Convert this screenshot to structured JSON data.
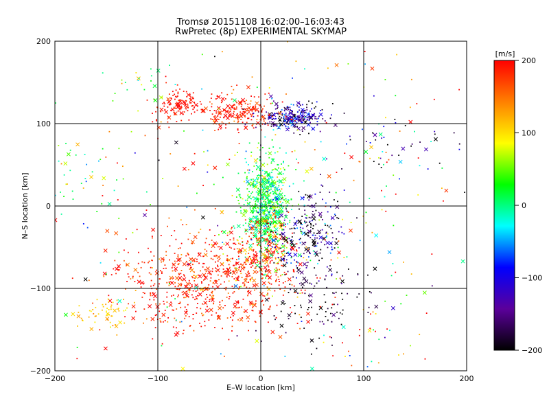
{
  "chart_data": {
    "type": "scatter",
    "title": "Tromsø 20151108 16:02:00–16:03:43",
    "subtitle": "RwPretec (8p) EXPERIMENTAL SKYMAP",
    "xlabel": "E–W location [km]",
    "ylabel": "N–S location [km]",
    "xlim": [
      -200,
      200
    ],
    "ylim": [
      -200,
      200
    ],
    "xticks": [
      -200,
      -100,
      0,
      100,
      200
    ],
    "yticks": [
      -200,
      -100,
      0,
      100,
      200
    ],
    "xtick_labels": [
      "−200",
      "−100",
      "0",
      "100",
      "200"
    ],
    "ytick_labels": [
      "−200",
      "−100",
      "0",
      "100",
      "200"
    ],
    "grid": true,
    "markers": [
      "dot",
      "x"
    ],
    "colorbar": {
      "label": "[m/s]",
      "range": [
        -200,
        200
      ],
      "ticks": [
        -200,
        -100,
        0,
        100,
        200
      ],
      "tick_labels": [
        "−200",
        "−100",
        "0",
        "100",
        "200"
      ],
      "colormap": [
        "#000000",
        "#5b009b",
        "#0000ff",
        "#00ffff",
        "#00ff00",
        "#ffff00",
        "#ff8000",
        "#ff0000"
      ]
    },
    "clusters": [
      {
        "cx": 5,
        "cy": 0,
        "sx": 12,
        "sy": 30,
        "n": 700,
        "v": 15,
        "vs": 35
      },
      {
        "cx": 30,
        "cy": 108,
        "sx": 15,
        "sy": 8,
        "n": 260,
        "v": -140,
        "vs": 50
      },
      {
        "cx": -20,
        "cy": 115,
        "sx": 18,
        "sy": 12,
        "n": 200,
        "v": 190,
        "vs": 25
      },
      {
        "cx": -80,
        "cy": 122,
        "sx": 12,
        "sy": 10,
        "n": 120,
        "v": 195,
        "vs": 15
      },
      {
        "cx": -60,
        "cy": -95,
        "sx": 40,
        "sy": 28,
        "n": 550,
        "v": 190,
        "vs": 30
      },
      {
        "cx": 0,
        "cy": -65,
        "sx": 18,
        "sy": 25,
        "n": 300,
        "v": 180,
        "vs": 45
      },
      {
        "cx": 45,
        "cy": -35,
        "sx": 18,
        "sy": 25,
        "n": 250,
        "v": -160,
        "vs": 60
      },
      {
        "cx": 60,
        "cy": -120,
        "sx": 25,
        "sy": 25,
        "n": 100,
        "v": -190,
        "vs": 25
      },
      {
        "cx": -150,
        "cy": -130,
        "sx": 15,
        "sy": 10,
        "n": 60,
        "v": 110,
        "vs": 15
      },
      {
        "cx": -175,
        "cy": 40,
        "sx": 25,
        "sy": 25,
        "n": 35,
        "v": 20,
        "vs": 40
      },
      {
        "cx": 130,
        "cy": 75,
        "sx": 30,
        "sy": 20,
        "n": 45,
        "v": -150,
        "vs": 100
      },
      {
        "cx": 0,
        "cy": 0,
        "sx": 100,
        "sy": 100,
        "n": 350,
        "v": 80,
        "vs": 130
      },
      {
        "cx": -120,
        "cy": 150,
        "sx": 15,
        "sy": 10,
        "n": 20,
        "v": 40,
        "vs": 60
      },
      {
        "cx": 110,
        "cy": -160,
        "sx": 30,
        "sy": 20,
        "n": 25,
        "v": 120,
        "vs": 120
      }
    ]
  }
}
